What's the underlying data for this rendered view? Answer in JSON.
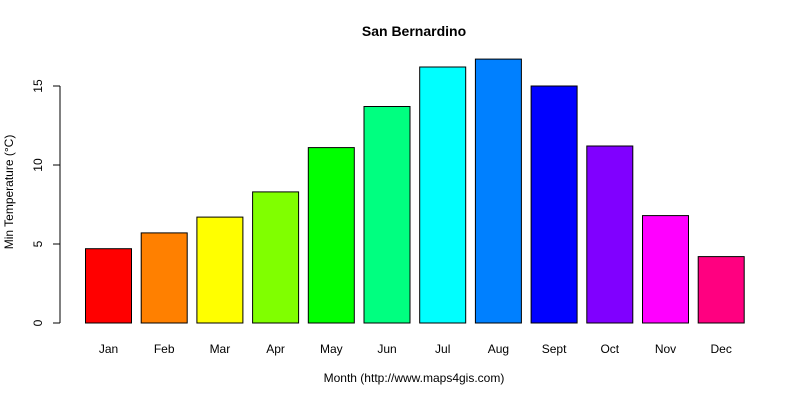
{
  "chart_data": {
    "type": "bar",
    "title": "San Bernardino",
    "xlabel": "Month (http://www.maps4gis.com)",
    "ylabel": "Min Temperature (°C)",
    "categories": [
      "Jan",
      "Feb",
      "Mar",
      "Apr",
      "May",
      "Jun",
      "Jul",
      "Aug",
      "Sept",
      "Oct",
      "Nov",
      "Dec"
    ],
    "values": [
      4.7,
      5.7,
      6.7,
      8.3,
      11.1,
      13.7,
      16.2,
      16.7,
      15.0,
      11.2,
      6.8,
      4.2
    ],
    "colors": [
      "#ff0000",
      "#ff8000",
      "#ffff00",
      "#80ff00",
      "#00ff00",
      "#00ff80",
      "#00ffff",
      "#0080ff",
      "#0000ff",
      "#8000ff",
      "#ff00ff",
      "#ff0080"
    ],
    "yticks": [
      0,
      5,
      10,
      15
    ],
    "ylim": [
      0,
      17
    ],
    "grid": false,
    "legend": "none"
  }
}
